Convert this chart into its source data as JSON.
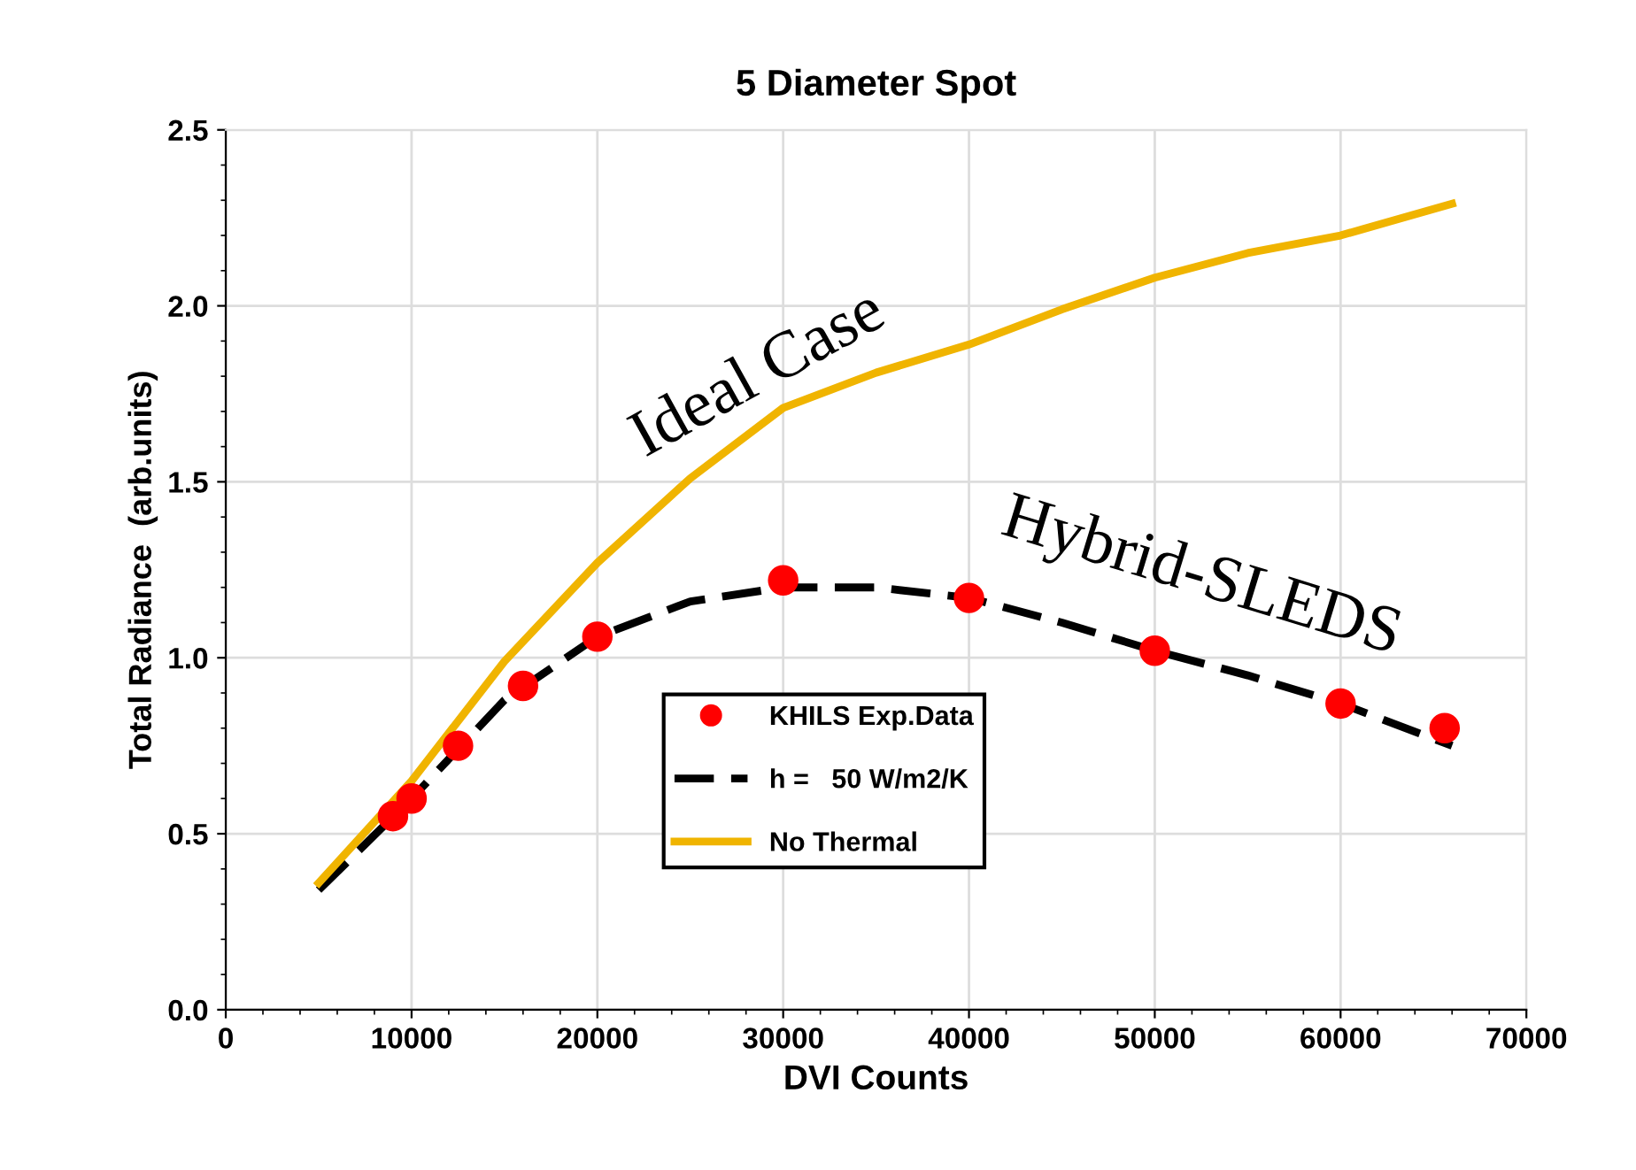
{
  "chart_data": {
    "type": "line",
    "title": "5 Diameter Spot",
    "xlabel": "DVI Counts",
    "ylabel": "Total Radiance  (arb.units)",
    "xlim": [
      0,
      70000
    ],
    "xticks": [
      0,
      10000,
      20000,
      30000,
      40000,
      50000,
      60000,
      70000
    ],
    "ylim": [
      0.0,
      2.5
    ],
    "yticks": [
      {
        "value": 0,
        "label": "0.0"
      },
      0.5,
      {
        "value": 1,
        "label": "1.0"
      },
      1.5,
      {
        "value": 2,
        "label": "2.0"
      },
      2.5
    ],
    "grid": true,
    "legend": "bottom",
    "series": [
      {
        "name": "KHILS Exp.Data",
        "type": "scatter",
        "color": "#ff0000",
        "marker": "circle",
        "x": [
          9000,
          10000,
          12500,
          16000,
          20000,
          30000,
          40000,
          50000,
          60000,
          65600
        ],
        "values": [
          0.55,
          0.6,
          0.75,
          0.92,
          1.06,
          1.22,
          1.17,
          1.02,
          0.87,
          0.8
        ]
      },
      {
        "name": "h =   50 W/m2/K",
        "color": "#000000",
        "line_style": "dashed",
        "x": [
          5000,
          10000,
          15000,
          20000,
          25000,
          30000,
          35000,
          40000,
          45000,
          50000,
          55000,
          60000,
          66000
        ],
        "values": [
          0.34,
          0.6,
          0.88,
          1.06,
          1.16,
          1.2,
          1.2,
          1.17,
          1.1,
          1.02,
          0.95,
          0.87,
          0.75
        ]
      },
      {
        "name": "No Thermal",
        "color": "#f0b400",
        "line_style": "solid",
        "x": [
          5000,
          10000,
          15000,
          20000,
          25000,
          30000,
          35000,
          40000,
          45000,
          50000,
          55000,
          60000,
          66000
        ],
        "values": [
          0.36,
          0.65,
          0.99,
          1.27,
          1.51,
          1.71,
          1.81,
          1.89,
          1.99,
          2.08,
          2.15,
          2.2,
          2.29
        ]
      }
    ],
    "annotations": [
      "Ideal Case",
      "Hybrid-SLEDS"
    ]
  }
}
